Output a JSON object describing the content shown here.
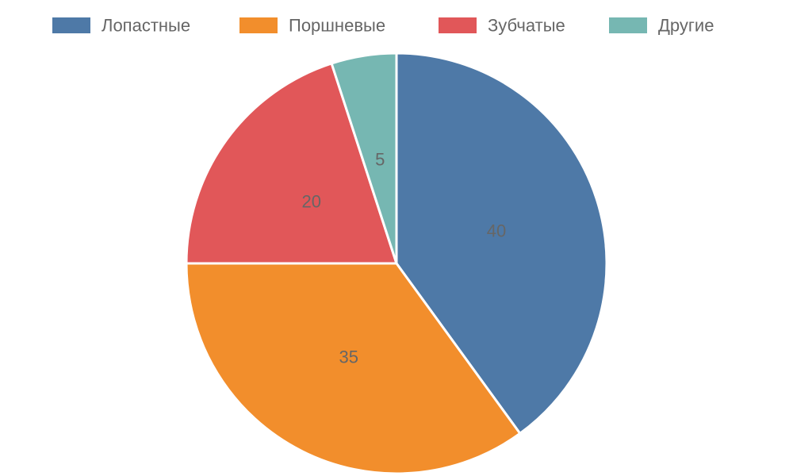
{
  "chart_data": {
    "type": "pie",
    "categories": [
      "Лопастные",
      "Поршневые",
      "Зубчатые",
      "Другие"
    ],
    "values": [
      40,
      35,
      20,
      5
    ],
    "colors": [
      "#4e79a7",
      "#f28e2c",
      "#e15759",
      "#76b7b2"
    ],
    "legend_position": "top",
    "title": ""
  }
}
